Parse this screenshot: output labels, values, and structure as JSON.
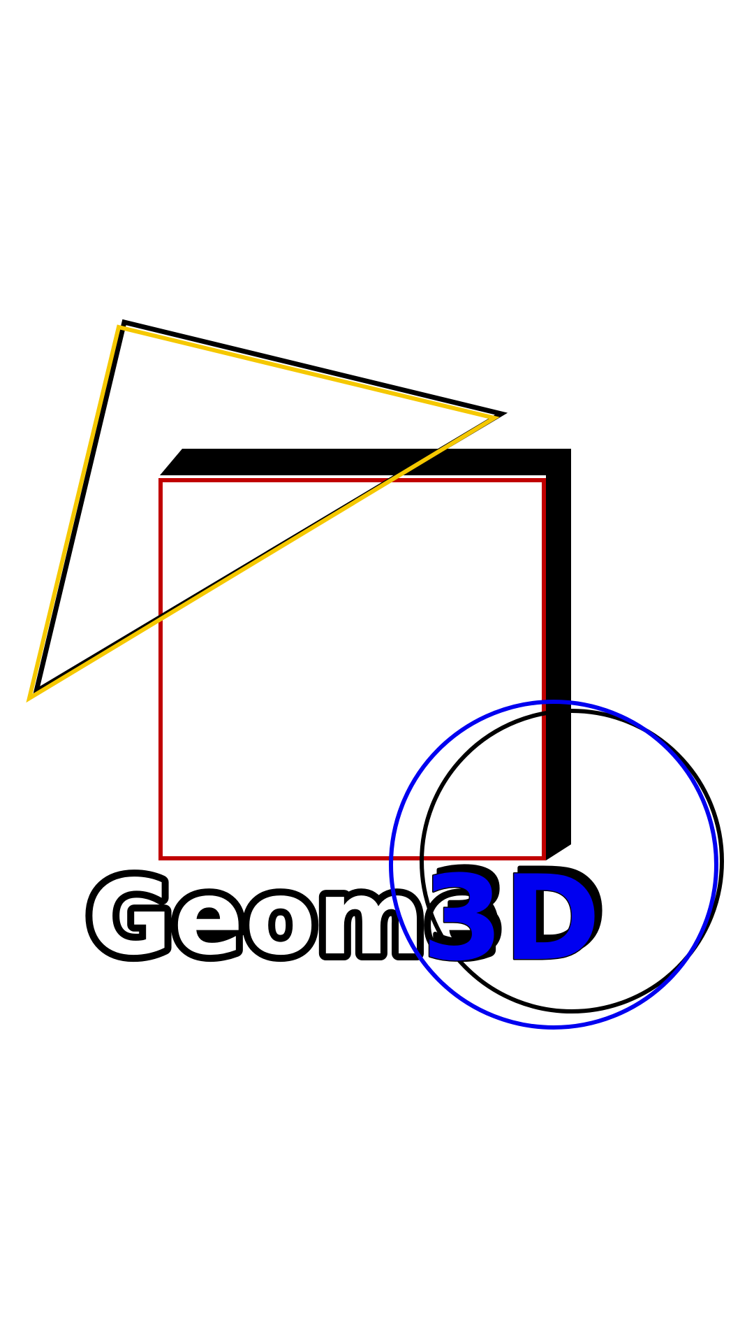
{
  "logo": {
    "word": "Geome",
    "accent": "3D"
  },
  "colors": {
    "background": "#ffffff",
    "triangle": "#f5c800",
    "square": "#c00000",
    "circle": "#0000f0",
    "accent_text": "#0000f0",
    "shadow": "#000000",
    "word_text": "#ffffff"
  },
  "icons": {
    "triangle": "triangle-outline-icon",
    "square": "square-outline-icon",
    "circle": "circle-outline-icon"
  }
}
